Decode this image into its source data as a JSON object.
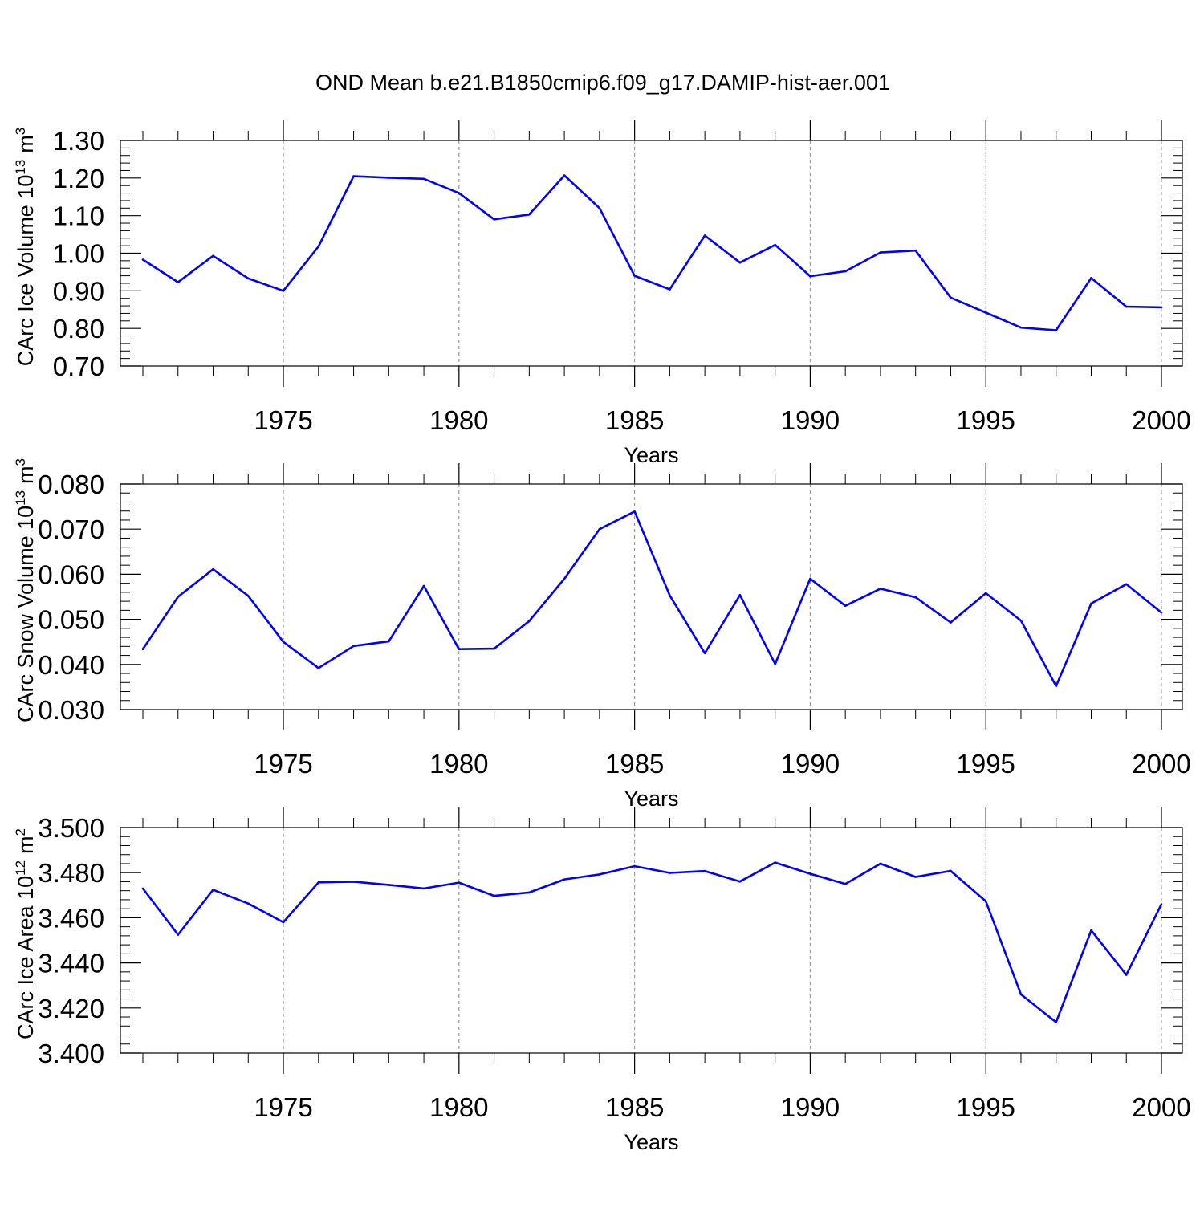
{
  "figure": {
    "title": "OND Mean b.e21.B1850cmip6.f09_g17.DAMIP-hist-aer.001",
    "line_color": "#0000ff"
  },
  "chart_data": [
    {
      "type": "line",
      "ylabel_main": "CArc Ice Volume 10",
      "ylabel_exp": "13",
      "ylabel_unit": "m",
      "ylabel_unit_exp": "3",
      "xlabel": "Years",
      "xlim": [
        1971,
        2000
      ],
      "ylim": [
        0.7,
        1.3
      ],
      "yticks": [
        "0.70",
        "0.80",
        "0.90",
        "1.00",
        "1.10",
        "1.20",
        "1.30"
      ],
      "ytick_values": [
        0.7,
        0.8,
        0.9,
        1.0,
        1.1,
        1.2,
        1.3
      ],
      "xticks": [
        "1975",
        "1980",
        "1985",
        "1990",
        "1995",
        "2000"
      ],
      "xtick_values": [
        1975,
        1980,
        1985,
        1990,
        1995,
        2000
      ],
      "x": [
        1971,
        1972,
        1973,
        1974,
        1975,
        1976,
        1977,
        1978,
        1979,
        1980,
        1981,
        1982,
        1983,
        1984,
        1985,
        1986,
        1987,
        1988,
        1989,
        1990,
        1991,
        1992,
        1993,
        1994,
        1995,
        1996,
        1997,
        1998,
        1999,
        2000
      ],
      "y": [
        0.983,
        0.923,
        0.993,
        0.933,
        0.9,
        1.018,
        1.205,
        1.201,
        1.198,
        1.16,
        1.09,
        1.103,
        1.207,
        1.12,
        0.94,
        0.904,
        1.047,
        0.975,
        1.022,
        0.939,
        0.952,
        1.002,
        1.007,
        0.882,
        0.842,
        0.802,
        0.795,
        0.934,
        0.858,
        0.856
      ]
    },
    {
      "type": "line",
      "ylabel_main": "CArc Snow Volume 10",
      "ylabel_exp": "13",
      "ylabel_unit": "m",
      "ylabel_unit_exp": "3",
      "xlabel": "Years",
      "xlim": [
        1971,
        2000
      ],
      "ylim": [
        0.03,
        0.08
      ],
      "yticks": [
        "0.030",
        "0.040",
        "0.050",
        "0.060",
        "0.070",
        "0.080"
      ],
      "ytick_values": [
        0.03,
        0.04,
        0.05,
        0.06,
        0.07,
        0.08
      ],
      "xticks": [
        "1975",
        "1980",
        "1985",
        "1990",
        "1995",
        "2000"
      ],
      "xtick_values": [
        1975,
        1980,
        1985,
        1990,
        1995,
        2000
      ],
      "x": [
        1971,
        1972,
        1973,
        1974,
        1975,
        1976,
        1977,
        1978,
        1979,
        1980,
        1981,
        1982,
        1983,
        1984,
        1985,
        1986,
        1987,
        1988,
        1989,
        1990,
        1991,
        1992,
        1993,
        1994,
        1995,
        1996,
        1997,
        1998,
        1999,
        2000
      ],
      "y": [
        0.0434,
        0.055,
        0.0611,
        0.0552,
        0.045,
        0.0392,
        0.0441,
        0.0451,
        0.0574,
        0.0434,
        0.0435,
        0.0496,
        0.059,
        0.07,
        0.0739,
        0.0553,
        0.0425,
        0.0554,
        0.0401,
        0.059,
        0.053,
        0.0568,
        0.0549,
        0.0493,
        0.0558,
        0.0497,
        0.0352,
        0.0535,
        0.0578,
        0.0515
      ]
    },
    {
      "type": "line",
      "ylabel_main": "CArc Ice Area 10",
      "ylabel_exp": "12",
      "ylabel_unit": "m",
      "ylabel_unit_exp": "2",
      "xlabel": "Years",
      "xlim": [
        1971,
        2000
      ],
      "ylim": [
        3.4,
        3.5
      ],
      "yticks": [
        "3.400",
        "3.420",
        "3.440",
        "3.460",
        "3.480",
        "3.500"
      ],
      "ytick_values": [
        3.4,
        3.42,
        3.44,
        3.46,
        3.48,
        3.5
      ],
      "xticks": [
        "1975",
        "1980",
        "1985",
        "1990",
        "1995",
        "2000"
      ],
      "xtick_values": [
        1975,
        1980,
        1985,
        1990,
        1995,
        2000
      ],
      "x": [
        1971,
        1972,
        1973,
        1974,
        1975,
        1976,
        1977,
        1978,
        1979,
        1980,
        1981,
        1982,
        1983,
        1984,
        1985,
        1986,
        1987,
        1988,
        1989,
        1990,
        1991,
        1992,
        1993,
        1994,
        1995,
        1996,
        1997,
        1998,
        1999,
        2000
      ],
      "y": [
        3.473,
        3.4525,
        3.4724,
        3.4663,
        3.458,
        3.4757,
        3.476,
        3.4746,
        3.473,
        3.4756,
        3.4697,
        3.4712,
        3.477,
        3.4792,
        3.4829,
        3.4799,
        3.4807,
        3.4761,
        3.4845,
        3.4795,
        3.475,
        3.484,
        3.4781,
        3.4808,
        3.4673,
        3.426,
        3.4137,
        3.4544,
        3.4347,
        3.466
      ]
    }
  ]
}
